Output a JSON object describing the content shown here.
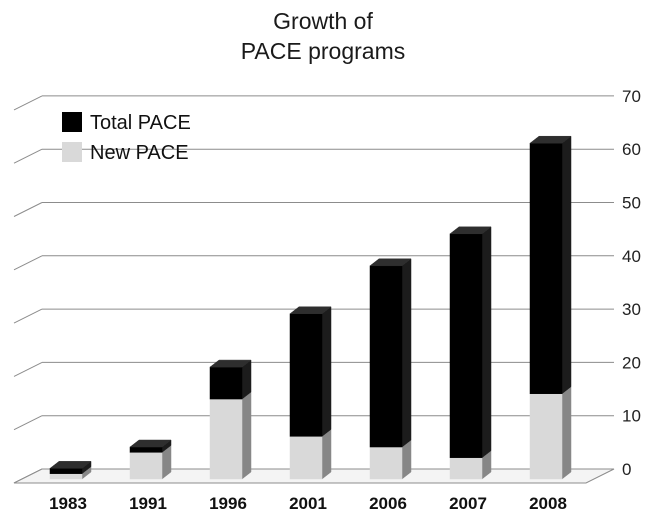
{
  "chart_data": {
    "type": "bar",
    "stacked": true,
    "three_d": true,
    "title": [
      "Growth of",
      "PACE programs"
    ],
    "categories": [
      "1983",
      "1991",
      "1996",
      "2001",
      "2006",
      "2007",
      "2008"
    ],
    "series": [
      {
        "name": "New PACE",
        "values": [
          1,
          5,
          15,
          8,
          6,
          4,
          16
        ],
        "color": "#d9d9d9"
      },
      {
        "name": "Total PACE",
        "values": [
          1,
          1,
          6,
          23,
          34,
          42,
          47
        ],
        "color": "#000000"
      }
    ],
    "ylim": [
      0,
      70
    ],
    "yticks": [
      0,
      10,
      20,
      30,
      40,
      50,
      60,
      70
    ],
    "grid": true,
    "legend_position": "top-left"
  }
}
